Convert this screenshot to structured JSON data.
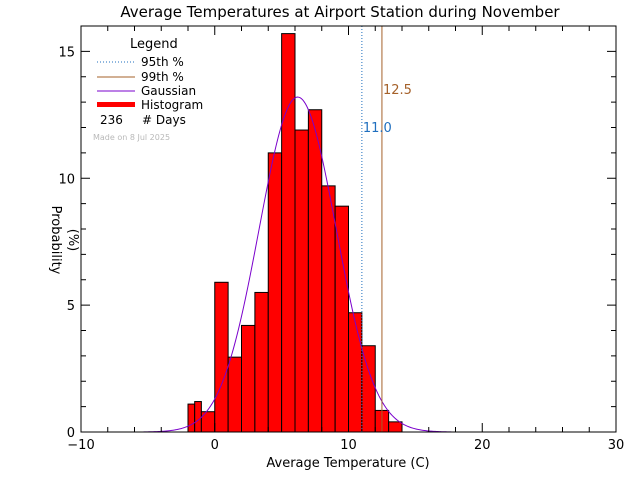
{
  "chart_data": {
    "type": "bar",
    "title": "Average Temperatures at Airport Station during November",
    "xlabel": "Average Temperature (C)",
    "ylabel": "Probability",
    "ylabel_unit": "(%)",
    "xlim": [
      -10,
      30
    ],
    "ylim": [
      0,
      16
    ],
    "xticks": [
      -10,
      0,
      10,
      20,
      30
    ],
    "yticks": [
      0,
      5,
      10,
      15
    ],
    "bin_width": 1,
    "bins": [
      {
        "x0": -2,
        "x1": -1.5,
        "value": 1.1
      },
      {
        "x0": -1.5,
        "x1": -1,
        "value": 1.2
      },
      {
        "x0": -1,
        "x1": 0,
        "value": 0.8
      },
      {
        "x0": 0,
        "x1": 1,
        "value": 5.9
      },
      {
        "x0": 1,
        "x1": 2,
        "value": 2.95
      },
      {
        "x0": 2,
        "x1": 3,
        "value": 4.2
      },
      {
        "x0": 3,
        "x1": 4,
        "value": 5.5
      },
      {
        "x0": 4,
        "x1": 5,
        "value": 11.0
      },
      {
        "x0": 5,
        "x1": 6,
        "value": 15.7
      },
      {
        "x0": 6,
        "x1": 7,
        "value": 11.9
      },
      {
        "x0": 7,
        "x1": 8,
        "value": 12.7
      },
      {
        "x0": 8,
        "x1": 9,
        "value": 9.7
      },
      {
        "x0": 9,
        "x1": 10,
        "value": 8.9
      },
      {
        "x0": 10,
        "x1": 11,
        "value": 4.7
      },
      {
        "x0": 11,
        "x1": 12,
        "value": 3.4
      },
      {
        "x0": 12,
        "x1": 13,
        "value": 0.85
      },
      {
        "x0": 13,
        "x1": 14,
        "value": 0.4
      }
    ],
    "gaussian": {
      "mean": 6.2,
      "sd": 2.88,
      "peak": 13.2
    },
    "percentiles": [
      {
        "name": "95th %",
        "value": 11.0,
        "label": "11.0",
        "color": "#1f6fbf",
        "style": "dotted"
      },
      {
        "name": "99th %",
        "value": 12.5,
        "label": "12.5",
        "color": "#a5612a",
        "style": "solid"
      }
    ],
    "legend": {
      "title": "Legend",
      "items": [
        "95th %",
        "99th %",
        "Gaussian",
        "Histogram"
      ],
      "days_count": "236",
      "days_label": "# Days",
      "made_on": "Made on 8 Jul 2025"
    },
    "colors": {
      "histogram": "#ff0000",
      "gaussian": "#7a00cc",
      "p95": "#1f6fbf",
      "p99": "#a5612a",
      "made_on": "#b9b9b9"
    }
  }
}
